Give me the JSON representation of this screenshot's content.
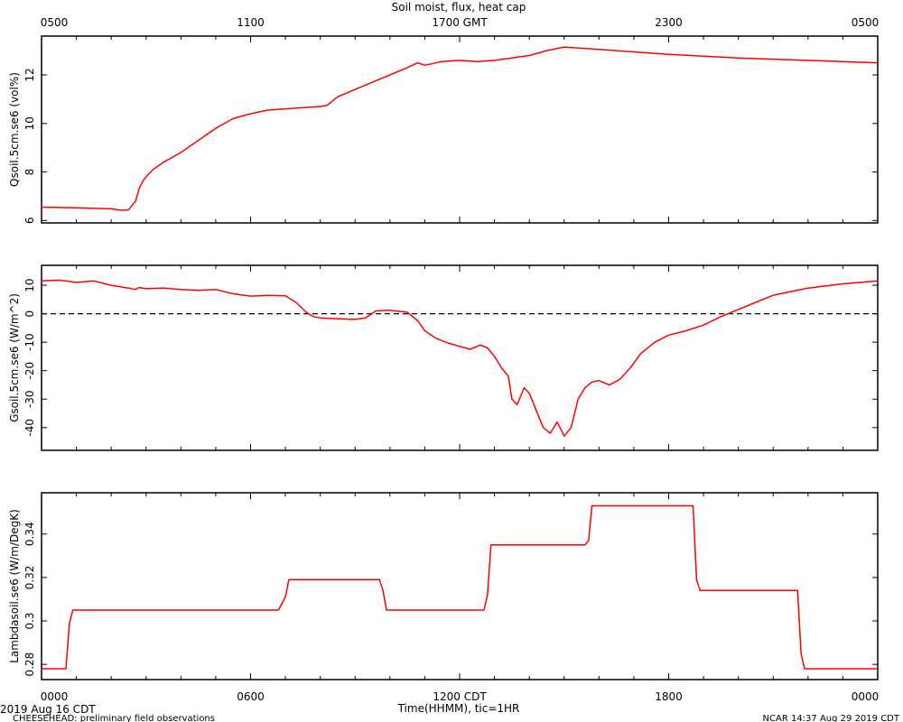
{
  "header": {
    "title": "Soil moist, flux, heat cap"
  },
  "footer": {
    "date_label": "2019 Aug 16 CDT",
    "project_label": "CHEESEHEAD: preliminary field observations",
    "credit_label": "NCAR 14:37 Aug 29 2019 CDT",
    "xlabel": "Time(HHMM), tic=1HR"
  },
  "styles": {
    "line_color": "#ff0000",
    "axis_color": "#000000",
    "background": "#ffffff"
  },
  "chart_data": [
    {
      "type": "line",
      "title": "Soil moist, flux, heat cap",
      "ylabel": "Qsoil.5cm.se6 (vol%)",
      "xlim": [
        0,
        24
      ],
      "ylim": [
        5.9,
        13.6
      ],
      "yticks": [
        6,
        8,
        10,
        12
      ],
      "top_axis_ticks": [
        {
          "x": 0,
          "label": "0500"
        },
        {
          "x": 6,
          "label": "1100"
        },
        {
          "x": 12,
          "label": "1700 GMT"
        },
        {
          "x": 18,
          "label": "2300"
        },
        {
          "x": 24,
          "label": "0500"
        }
      ],
      "series": [
        {
          "x": [
            0,
            1,
            2,
            2.3,
            2.5,
            2.7,
            2.8,
            2.9,
            3.0,
            3.2,
            3.5,
            4.0,
            4.5,
            5.0,
            5.5,
            6.0,
            6.5,
            7.0,
            7.5,
            8.0,
            8.2,
            8.5,
            9.0,
            9.5,
            10.0,
            10.5,
            10.8,
            11.0,
            11.5,
            12.0,
            12.5,
            13.0,
            13.5,
            14.0,
            14.5,
            15.0,
            16.0,
            17.0,
            18.0,
            20.0,
            22.0,
            24.0
          ],
          "y": [
            6.55,
            6.52,
            6.48,
            6.42,
            6.45,
            6.8,
            7.3,
            7.6,
            7.8,
            8.1,
            8.4,
            8.8,
            9.3,
            9.8,
            10.2,
            10.4,
            10.55,
            10.6,
            10.65,
            10.7,
            10.75,
            11.1,
            11.4,
            11.7,
            12.0,
            12.3,
            12.5,
            12.4,
            12.55,
            12.6,
            12.55,
            12.6,
            12.7,
            12.8,
            13.0,
            13.15,
            13.05,
            12.95,
            12.85,
            12.7,
            12.6,
            12.5
          ]
        }
      ]
    },
    {
      "type": "line",
      "ylabel": "Gsoil.5cm.se6 (W/m^2)",
      "xlim": [
        0,
        24
      ],
      "ylim": [
        -48,
        17
      ],
      "yticks": [
        10,
        0,
        -10,
        -20,
        -30,
        -40
      ],
      "reference_line": 0,
      "series": [
        {
          "x": [
            0,
            0.5,
            1.0,
            1.5,
            2.0,
            2.5,
            2.7,
            2.8,
            3.0,
            3.5,
            4.0,
            4.5,
            5.0,
            5.5,
            6.0,
            6.5,
            7.0,
            7.3,
            7.6,
            7.8,
            8.0,
            8.5,
            9.0,
            9.3,
            9.6,
            10.0,
            10.5,
            10.8,
            11.0,
            11.3,
            11.6,
            12.0,
            12.3,
            12.6,
            12.8,
            13.0,
            13.2,
            13.4,
            13.5,
            13.65,
            13.85,
            14.0,
            14.2,
            14.4,
            14.6,
            14.8,
            15.0,
            15.2,
            15.4,
            15.6,
            15.8,
            16.0,
            16.3,
            16.6,
            16.9,
            17.2,
            17.6,
            18.0,
            18.5,
            19.0,
            19.5,
            20.0,
            20.5,
            21.0,
            22.0,
            23.0,
            24.0
          ],
          "y": [
            11.5,
            11.8,
            11.0,
            11.5,
            10.0,
            9.0,
            8.5,
            9.2,
            8.8,
            9.0,
            8.5,
            8.2,
            8.5,
            7.0,
            6.2,
            6.4,
            6.3,
            4.0,
            0.5,
            -1.0,
            -1.5,
            -1.8,
            -2.0,
            -1.5,
            1.0,
            1.2,
            0.5,
            -2.5,
            -6.0,
            -8.5,
            -10.0,
            -11.5,
            -12.5,
            -11.0,
            -12.0,
            -15.0,
            -19.0,
            -22.0,
            -30.0,
            -32.0,
            -26.0,
            -28.0,
            -34.0,
            -40.0,
            -42.0,
            -38.0,
            -43.0,
            -40.0,
            -30.0,
            -26.0,
            -24.0,
            -23.5,
            -25.0,
            -23.0,
            -19.0,
            -14.0,
            -10.0,
            -7.5,
            -6.0,
            -4.0,
            -1.0,
            1.5,
            4.0,
            6.5,
            9.0,
            10.5,
            11.5
          ]
        }
      ]
    },
    {
      "type": "line",
      "ylabel": "Lambdasoil.se6 (W/m/DegK)",
      "xtick_labels": [
        {
          "x": 0,
          "label": "0000"
        },
        {
          "x": 6,
          "label": "0600"
        },
        {
          "x": 12,
          "label": "1200 CDT"
        },
        {
          "x": 18,
          "label": "1800"
        },
        {
          "x": 24,
          "label": "0000"
        }
      ],
      "xlim": [
        0,
        24
      ],
      "ylim": [
        0.273,
        0.359
      ],
      "yticks": [
        0.28,
        0.3,
        0.32,
        0.34
      ],
      "series": [
        {
          "x": [
            0,
            0.7,
            0.8,
            0.9,
            6.8,
            7.0,
            7.1,
            9.7,
            9.8,
            9.9,
            12.7,
            12.8,
            12.9,
            15.6,
            15.7,
            15.8,
            18.7,
            18.8,
            18.9,
            21.7,
            21.8,
            21.9,
            24.0
          ],
          "y": [
            0.278,
            0.278,
            0.299,
            0.305,
            0.305,
            0.311,
            0.319,
            0.319,
            0.314,
            0.305,
            0.305,
            0.312,
            0.335,
            0.335,
            0.337,
            0.353,
            0.353,
            0.319,
            0.314,
            0.314,
            0.285,
            0.278,
            0.278
          ]
        }
      ]
    }
  ]
}
